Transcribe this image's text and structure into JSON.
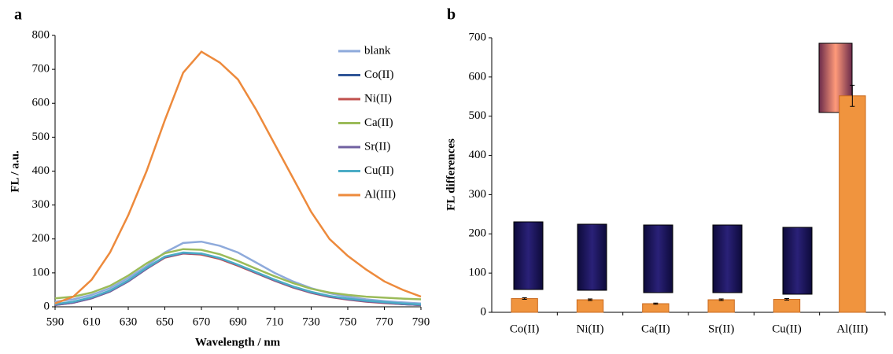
{
  "chart_data": [
    {
      "type": "line",
      "panel": "a",
      "xlabel": "Wavelength / nm",
      "ylabel": "FL / a.u.",
      "x": [
        590,
        600,
        610,
        620,
        630,
        640,
        650,
        660,
        670,
        680,
        690,
        700,
        710,
        720,
        730,
        740,
        750,
        760,
        770,
        780,
        790
      ],
      "xlim": [
        590,
        790
      ],
      "xticks": [
        590,
        610,
        630,
        650,
        670,
        690,
        710,
        730,
        750,
        770,
        790
      ],
      "ylim": [
        0,
        800
      ],
      "yticks": [
        0,
        100,
        200,
        300,
        400,
        500,
        600,
        700,
        800
      ],
      "legend": "upper right",
      "series": [
        {
          "name": "blank",
          "color": "#8eaadb",
          "values": [
            15,
            22,
            35,
            55,
            85,
            120,
            160,
            188,
            192,
            180,
            160,
            130,
            100,
            75,
            55,
            40,
            30,
            22,
            17,
            13,
            10
          ]
        },
        {
          "name": "Co(II)",
          "color": "#2f5597",
          "values": [
            6,
            13,
            26,
            46,
            76,
            113,
            146,
            158,
            155,
            142,
            122,
            100,
            78,
            58,
            42,
            30,
            22,
            16,
            12,
            8,
            5
          ]
        },
        {
          "name": "Ni(II)",
          "color": "#c0504d",
          "values": [
            5,
            12,
            25,
            45,
            75,
            112,
            145,
            157,
            154,
            141,
            121,
            99,
            77,
            57,
            41,
            29,
            21,
            15,
            11,
            8,
            5
          ]
        },
        {
          "name": "Ca(II)",
          "color": "#9bbb59",
          "values": [
            25,
            30,
            42,
            62,
            92,
            128,
            158,
            170,
            168,
            155,
            135,
            112,
            90,
            70,
            53,
            42,
            35,
            30,
            27,
            24,
            22
          ]
        },
        {
          "name": "Sr(II)",
          "color": "#7060a0",
          "values": [
            5,
            12,
            25,
            45,
            75,
            112,
            146,
            158,
            156,
            143,
            123,
            100,
            78,
            58,
            42,
            30,
            22,
            16,
            12,
            8,
            5
          ]
        },
        {
          "name": "Cu(II)",
          "color": "#4bacc6",
          "values": [
            8,
            15,
            28,
            48,
            78,
            115,
            148,
            160,
            157,
            144,
            124,
            102,
            80,
            60,
            44,
            32,
            24,
            18,
            14,
            10,
            7
          ]
        },
        {
          "name": "Al(III)",
          "color": "#ed8a3c",
          "values": [
            10,
            30,
            80,
            160,
            270,
            400,
            550,
            690,
            752,
            720,
            670,
            580,
            480,
            380,
            280,
            200,
            150,
            110,
            75,
            50,
            30
          ]
        }
      ]
    },
    {
      "type": "bar",
      "panel": "b",
      "ylabel": "FL differences",
      "categories": [
        "Co(II)",
        "Ni(II)",
        "Ca(II)",
        "Sr(II)",
        "Cu(II)",
        "Al(III)"
      ],
      "values": [
        35,
        32,
        22,
        32,
        33,
        552
      ],
      "errors": [
        2,
        2,
        1.5,
        2,
        2,
        27
      ],
      "color": "#f0943e",
      "ylim": [
        0,
        700
      ],
      "yticks": [
        0,
        100,
        200,
        300,
        400,
        500,
        600,
        700
      ]
    }
  ]
}
